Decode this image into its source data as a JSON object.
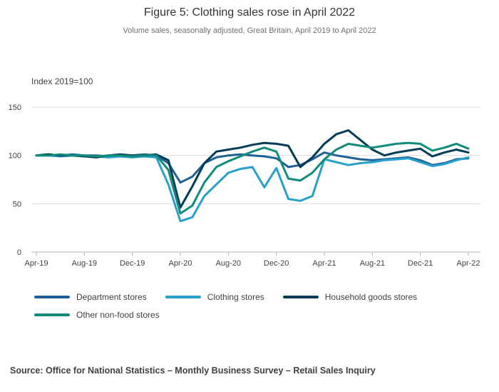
{
  "header": {
    "title": "Figure 5: Clothing sales rose in April 2022",
    "subtitle": "Volume sales, seasonally adjusted, Great Britain, April 2019 to April 2022"
  },
  "chart_data": {
    "type": "line",
    "title": "Figure 5: Clothing sales rose in April 2022",
    "subtitle": "Volume sales, seasonally adjusted, Great Britain, April 2019 to April 2022",
    "y_axis_label": "Index 2019=100",
    "y_ticks": [
      0,
      50,
      100,
      150
    ],
    "ylim": [
      0,
      150
    ],
    "grid": true,
    "legend_position": "bottom",
    "x_tick_labels": [
      "Apr-19",
      "Aug-19",
      "Dec-19",
      "Apr-20",
      "Aug-20",
      "Dec-20",
      "Apr-21",
      "Aug-21",
      "Dec-21",
      "Apr-22"
    ],
    "x": [
      "Apr-19",
      "May-19",
      "Jun-19",
      "Jul-19",
      "Aug-19",
      "Sep-19",
      "Oct-19",
      "Nov-19",
      "Dec-19",
      "Jan-20",
      "Feb-20",
      "Mar-20",
      "Apr-20",
      "May-20",
      "Jun-20",
      "Jul-20",
      "Aug-20",
      "Sep-20",
      "Oct-20",
      "Nov-20",
      "Dec-20",
      "Jan-21",
      "Feb-21",
      "Mar-21",
      "Apr-21",
      "May-21",
      "Jun-21",
      "Jul-21",
      "Aug-21",
      "Sep-21",
      "Oct-21",
      "Nov-21",
      "Dec-21",
      "Jan-22",
      "Feb-22",
      "Mar-22",
      "Apr-22"
    ],
    "series": [
      {
        "name": "Department stores",
        "color": "#206095",
        "values": [
          100,
          101,
          100,
          101,
          100,
          100,
          99,
          100,
          100,
          101,
          100,
          92,
          72,
          78,
          92,
          98,
          100,
          101,
          100,
          99,
          97,
          88,
          90,
          96,
          103,
          100,
          98,
          96,
          95,
          96,
          97,
          98,
          95,
          90,
          92,
          96,
          97
        ]
      },
      {
        "name": "Clothing stores",
        "color": "#27a0cc",
        "values": [
          100,
          100,
          99,
          100,
          99,
          99,
          98,
          99,
          98,
          99,
          98,
          70,
          32,
          36,
          58,
          70,
          82,
          86,
          88,
          67,
          87,
          55,
          53,
          58,
          96,
          93,
          90,
          92,
          93,
          95,
          96,
          97,
          93,
          89,
          91,
          95,
          98
        ]
      },
      {
        "name": "Household goods stores",
        "color": "#003c57",
        "values": [
          100,
          101,
          100,
          100,
          99,
          98,
          100,
          101,
          100,
          100,
          101,
          95,
          46,
          68,
          92,
          104,
          106,
          108,
          111,
          113,
          112,
          110,
          88,
          98,
          112,
          122,
          126,
          116,
          106,
          100,
          103,
          105,
          107,
          99,
          103,
          106,
          103
        ]
      },
      {
        "name": "Other non-food stores",
        "color": "#118c7b",
        "values": [
          100,
          100,
          101,
          100,
          100,
          99,
          100,
          100,
          99,
          100,
          100,
          85,
          40,
          48,
          72,
          88,
          94,
          99,
          104,
          108,
          104,
          76,
          74,
          82,
          96,
          106,
          112,
          110,
          108,
          110,
          112,
          113,
          112,
          105,
          108,
          112,
          107
        ]
      }
    ]
  },
  "source": "Source: Office for National Statistics – Monthly Business Survey – Retail Sales Inquiry"
}
